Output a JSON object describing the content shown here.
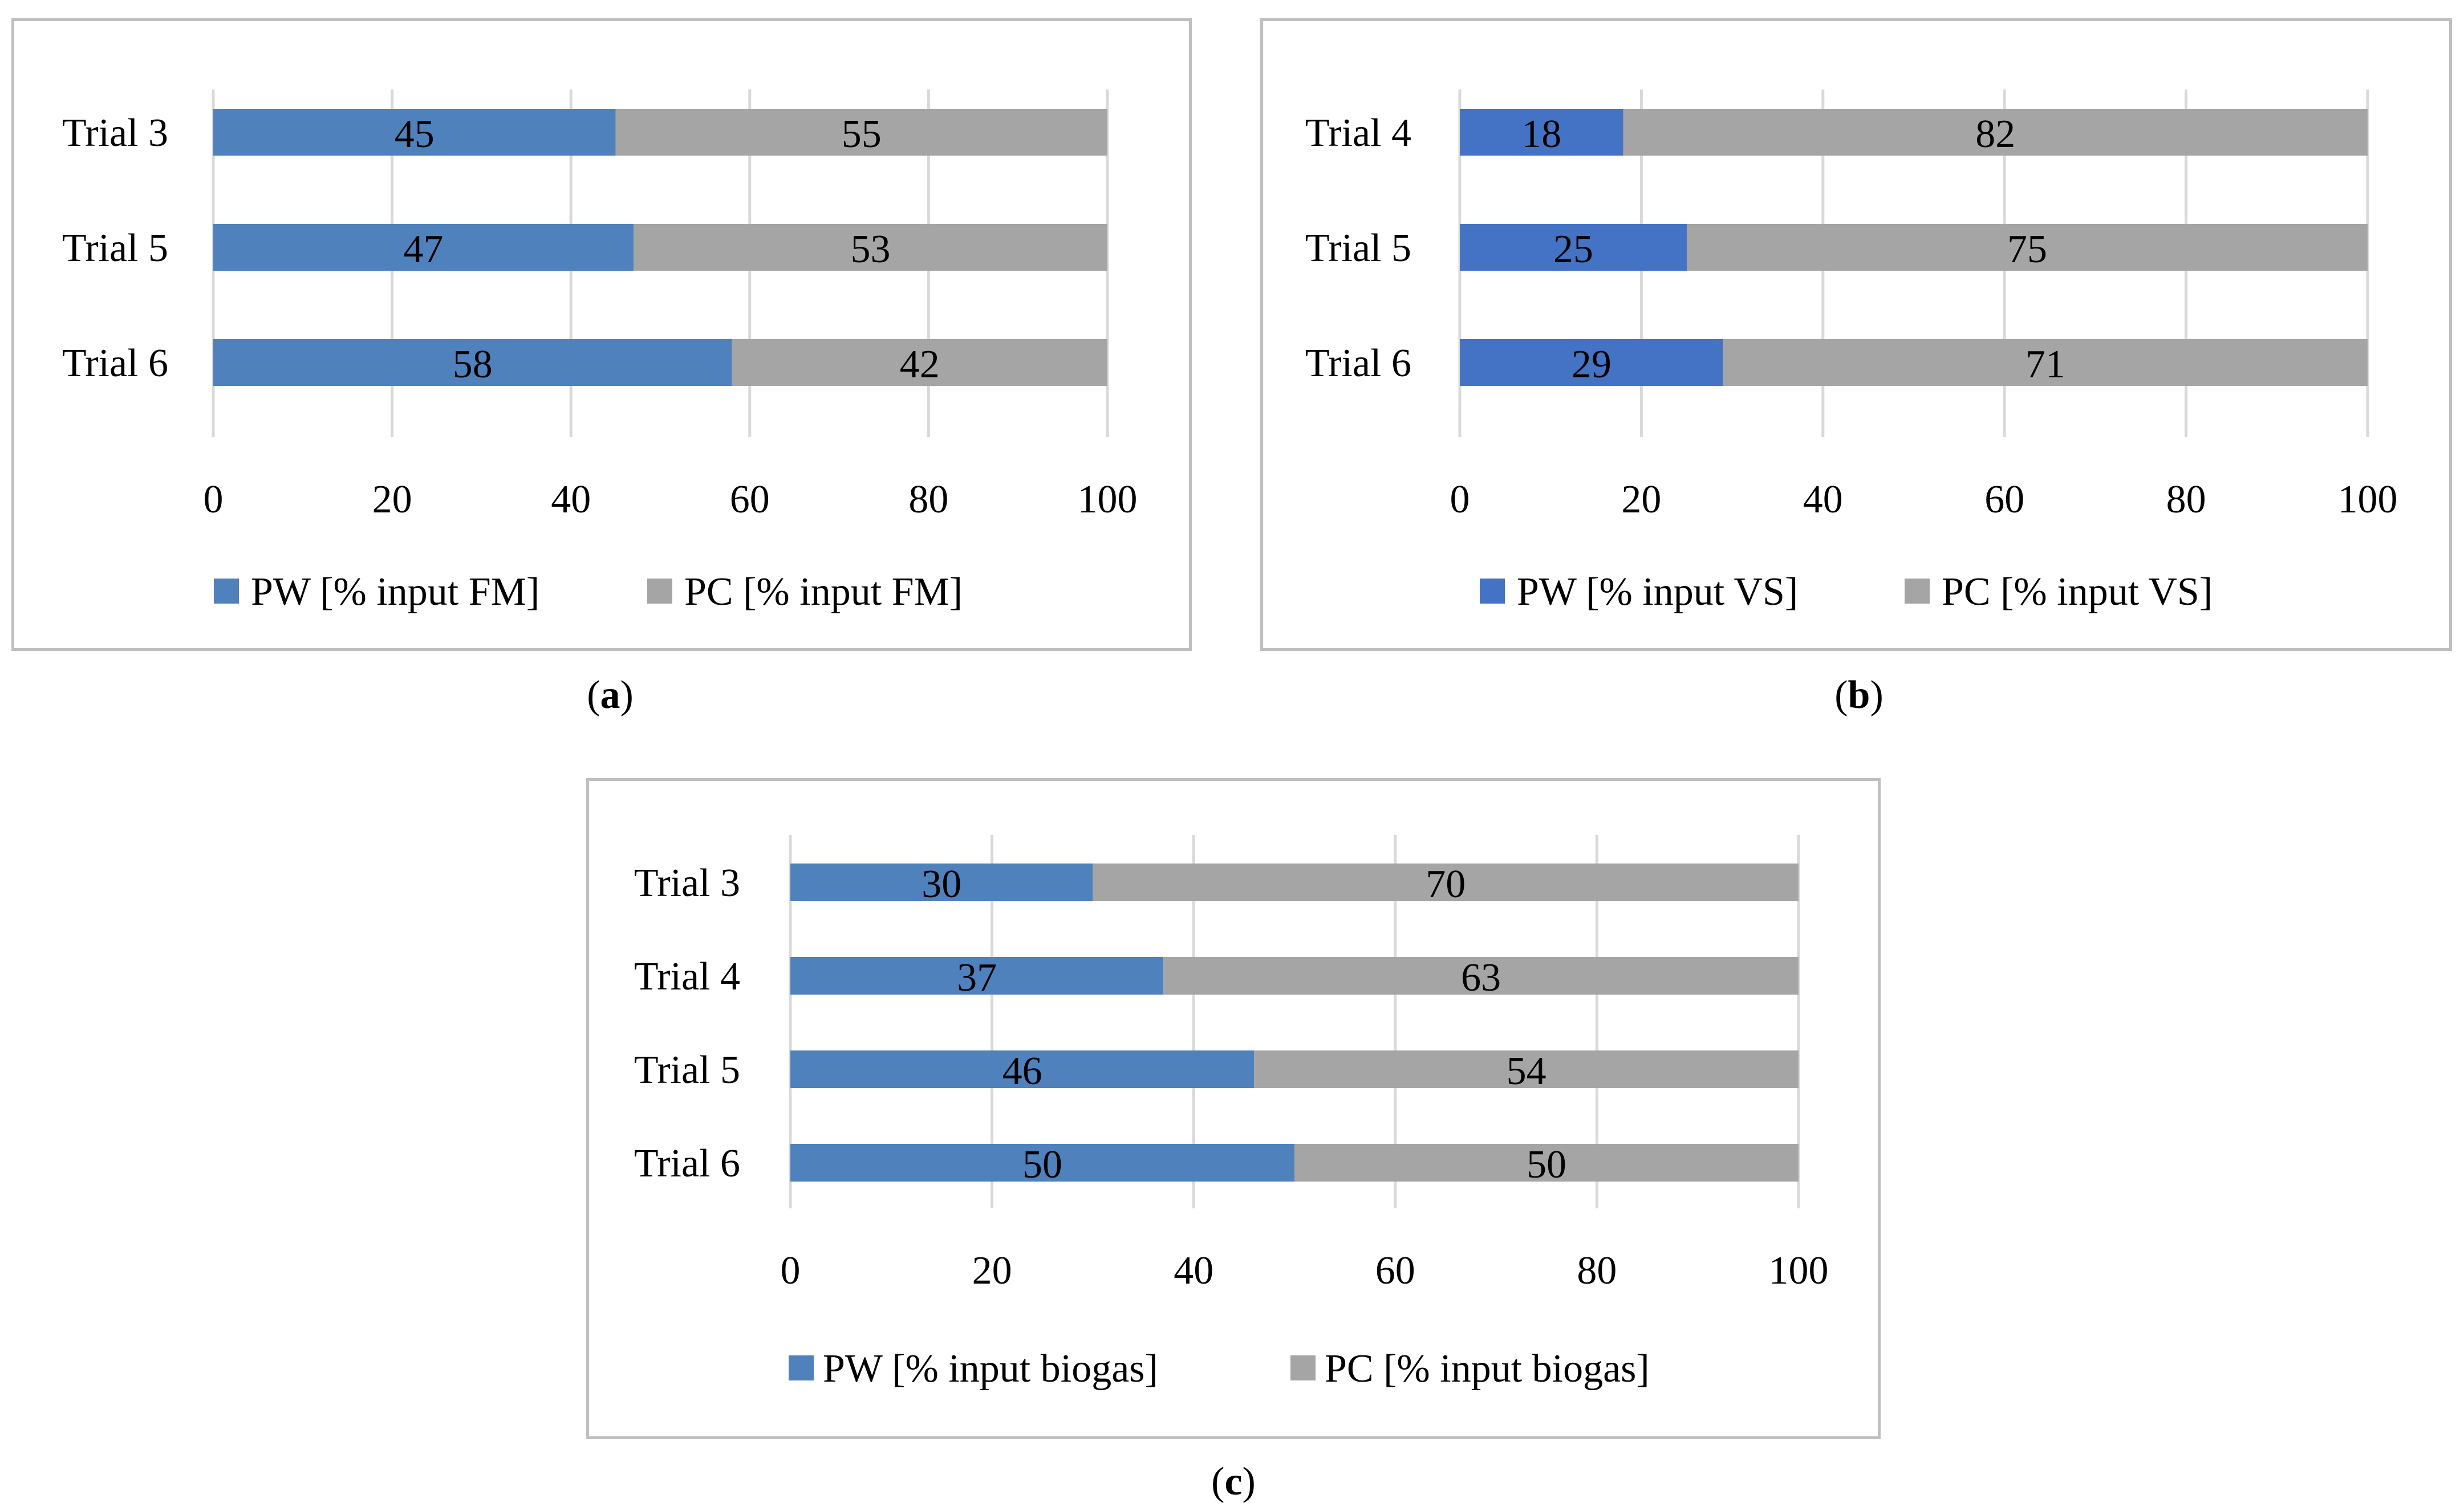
{
  "chart_data": [
    {
      "type": "bar",
      "stacked": true,
      "orientation": "horizontal",
      "panel_label": "a",
      "categories": [
        "Trial 3",
        "Trial 5",
        "Trial 6"
      ],
      "series": [
        {
          "name": "PW [% input FM]",
          "values": [
            45,
            47,
            58
          ],
          "color": "#4f81bd"
        },
        {
          "name": "PC [% input FM]",
          "values": [
            55,
            53,
            42
          ],
          "color": "#a5a5a5"
        }
      ],
      "xlim": [
        0,
        100
      ],
      "xticks": [
        "0",
        "20",
        "40",
        "60",
        "80",
        "100"
      ],
      "grid": true,
      "legend": "bottom"
    },
    {
      "type": "bar",
      "stacked": true,
      "orientation": "horizontal",
      "panel_label": "b",
      "categories": [
        "Trial 4",
        "Trial 5",
        "Trial 6"
      ],
      "series": [
        {
          "name": "PW [% input VS]",
          "values": [
            18,
            25,
            29
          ],
          "color": "#4472c4"
        },
        {
          "name": "PC [% input VS]",
          "values": [
            82,
            75,
            71
          ],
          "color": "#a5a5a5"
        }
      ],
      "xlim": [
        0,
        100
      ],
      "xticks": [
        "0",
        "20",
        "40",
        "60",
        "80",
        "100"
      ],
      "grid": true,
      "legend": "bottom"
    },
    {
      "type": "bar",
      "stacked": true,
      "orientation": "horizontal",
      "panel_label": "c",
      "categories": [
        "Trial 3",
        "Trial 4",
        "Trial 5",
        "Trial 6"
      ],
      "series": [
        {
          "name": "PW [% input biogas]",
          "values": [
            30,
            37,
            46,
            50
          ],
          "color": "#4f81bd"
        },
        {
          "name": "PC [% input biogas]",
          "values": [
            70,
            63,
            54,
            50
          ],
          "color": "#a5a5a5"
        }
      ],
      "xlim": [
        0,
        100
      ],
      "xticks": [
        "0",
        "20",
        "40",
        "60",
        "80",
        "100"
      ],
      "grid": true,
      "legend": "bottom"
    }
  ],
  "captions": {
    "a": {
      "open": "(",
      "label": "a",
      "close": ")"
    },
    "b": {
      "open": "(",
      "label": "b",
      "close": ")"
    },
    "c": {
      "open": "(",
      "label": "c",
      "close": ")"
    }
  }
}
